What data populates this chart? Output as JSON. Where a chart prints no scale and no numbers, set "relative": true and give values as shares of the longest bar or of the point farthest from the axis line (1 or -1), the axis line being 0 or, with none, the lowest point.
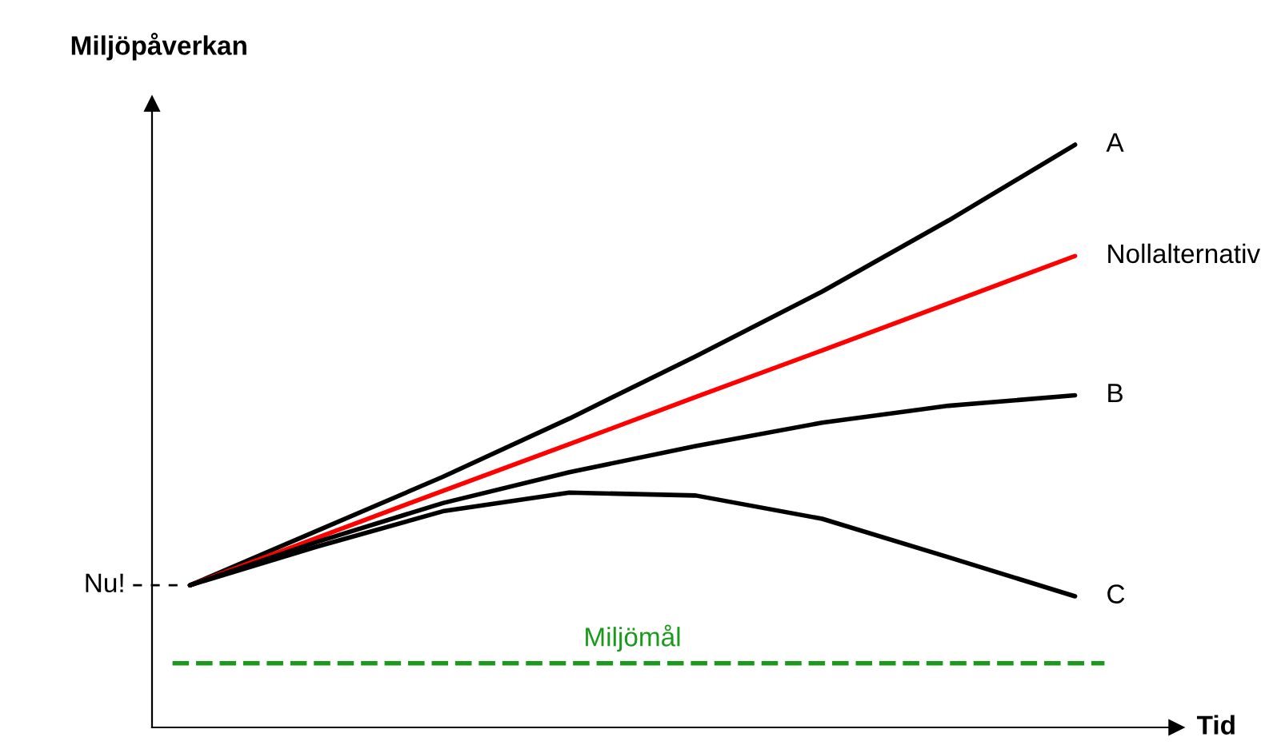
{
  "chart_data": {
    "type": "line",
    "relative": true,
    "ylabel": "Miljöpåverkan",
    "xlabel": "Tid",
    "legend": false,
    "marker": "none",
    "categories": [
      null,
      null,
      null,
      null,
      null,
      null,
      null,
      null
    ],
    "series": [
      {
        "name": "A",
        "color": "#000000",
        "values": [
          0.244,
          0.337,
          0.43,
          0.53,
          0.637,
          0.748,
          0.87,
          1
        ]
      },
      {
        "name": "Nollalternativ",
        "color": "#ff0000",
        "values": [
          0.244,
          0.325,
          0.406,
          0.486,
          0.567,
          0.647,
          0.728,
          0.809
        ]
      },
      {
        "name": "B",
        "color": "#000000",
        "values": [
          0.244,
          0.318,
          0.385,
          0.438,
          0.483,
          0.523,
          0.552,
          0.57
        ]
      },
      {
        "name": "C",
        "color": "#000000",
        "values": [
          0.244,
          0.31,
          0.371,
          0.403,
          0.398,
          0.358,
          0.292,
          0.225
        ]
      }
    ],
    "ref_lines": [
      {
        "axis": "y",
        "value": 0.11,
        "label": "Miljömål",
        "color": "#1a9a1a",
        "line_style": "dashed"
      }
    ],
    "annotations": [
      "Nu!"
    ]
  }
}
